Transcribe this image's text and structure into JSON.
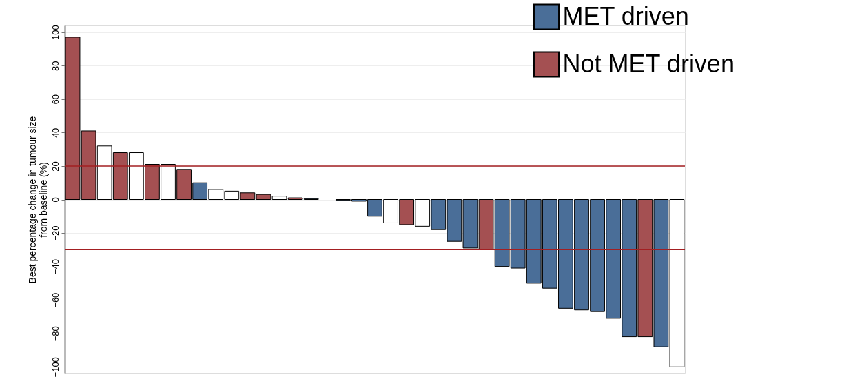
{
  "chart_data": {
    "type": "bar",
    "ylabel": "Best percentage change in tumour size\nfrom baseline (%)",
    "categories": [
      null,
      null,
      null,
      null,
      null,
      null,
      null,
      null,
      null,
      null,
      null,
      null,
      null,
      null,
      null,
      null,
      null,
      null,
      null,
      null,
      null,
      null,
      null,
      null,
      null,
      null,
      null,
      null,
      null,
      null,
      null,
      null,
      null,
      null,
      null,
      null,
      null,
      null,
      null
    ],
    "series": [
      {
        "name": "MET driven",
        "color": "#4a6e98",
        "values": [
          null,
          null,
          null,
          null,
          null,
          null,
          null,
          null,
          10,
          null,
          null,
          null,
          null,
          null,
          null,
          0.5,
          null,
          -0.5,
          -1,
          -10,
          null,
          null,
          null,
          -18,
          -25,
          -29,
          null,
          -40,
          -41,
          -50,
          -53,
          -65,
          -66,
          -67,
          -71,
          -82,
          null,
          -88,
          null
        ]
      },
      {
        "name": "Not MET driven",
        "color": "#a45052",
        "values": [
          97,
          41,
          null,
          28,
          null,
          21,
          null,
          18,
          null,
          null,
          null,
          4,
          3,
          null,
          1,
          null,
          null,
          null,
          null,
          null,
          null,
          -15,
          null,
          null,
          null,
          null,
          -30,
          null,
          null,
          null,
          null,
          null,
          null,
          null,
          null,
          null,
          -82,
          null,
          null
        ]
      },
      {
        "color": "#ffffff",
        "values": [
          null,
          null,
          32,
          null,
          28,
          null,
          21,
          null,
          null,
          6,
          5,
          null,
          null,
          2,
          null,
          null,
          null,
          null,
          null,
          null,
          -14,
          null,
          -16,
          null,
          null,
          null,
          null,
          null,
          null,
          null,
          null,
          null,
          null,
          null,
          null,
          null,
          null,
          null,
          -100
        ]
      }
    ],
    "ylim": [
      -104,
      104
    ],
    "yticks": [
      -100,
      -80,
      -60,
      -40,
      -20,
      0,
      20,
      40,
      60,
      80,
      100
    ],
    "ref_lines": [
      {
        "axis": "y",
        "value": 20,
        "color": "#a31f22"
      },
      {
        "axis": "y",
        "value": -30,
        "color": "#a31f22"
      }
    ],
    "grid": "y",
    "legend": "top right",
    "tick_labels": "y"
  }
}
